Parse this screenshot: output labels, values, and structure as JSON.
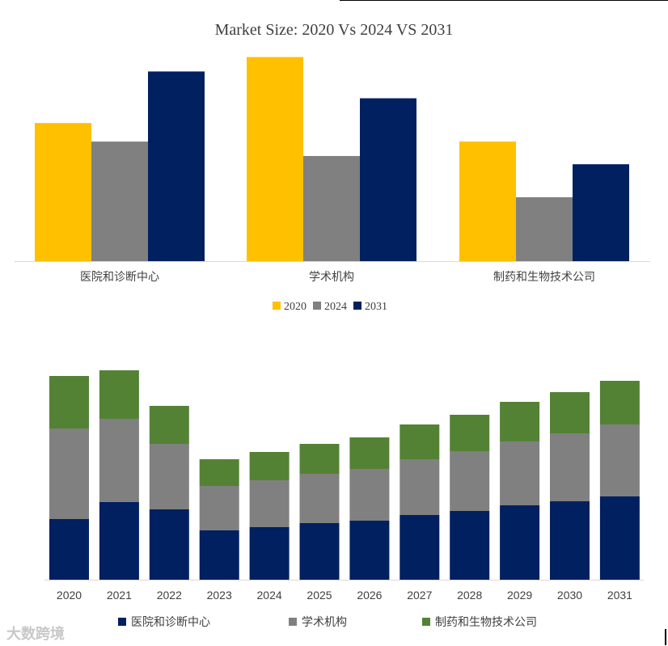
{
  "chart_data": [
    {
      "type": "bar",
      "title": "Market Size: 2020 Vs 2024 VS 2031",
      "categories": [
        "医院和诊断中心",
        "学术机构",
        "制药和生物技术公司"
      ],
      "series": [
        {
          "name": "2020",
          "color": "#FFC000",
          "values": [
            67,
            99,
            58
          ]
        },
        {
          "name": "2024",
          "color": "#808080",
          "values": [
            58,
            51,
            31
          ]
        },
        {
          "name": "2031",
          "color": "#002060",
          "values": [
            92,
            79,
            47
          ]
        }
      ],
      "ylim": [
        0,
        100
      ],
      "grid": false,
      "legend": "bottom"
    },
    {
      "type": "bar",
      "stacked": true,
      "categories": [
        "2020",
        "2021",
        "2022",
        "2023",
        "2024",
        "2025",
        "2026",
        "2027",
        "2028",
        "2029",
        "2030",
        "2031"
      ],
      "series": [
        {
          "name": "医院和诊断中心",
          "color": "#002060",
          "values": [
            75,
            96,
            87,
            61,
            65,
            70,
            73,
            80,
            85,
            92,
            97,
            103
          ]
        },
        {
          "name": "学术机构",
          "color": "#808080",
          "values": [
            112,
            103,
            81,
            55,
            58,
            61,
            64,
            69,
            74,
            79,
            84,
            89
          ]
        },
        {
          "name": "制药和生物技术公司",
          "color": "#548235",
          "values": [
            65,
            60,
            47,
            33,
            35,
            37,
            39,
            43,
            45,
            49,
            51,
            54
          ]
        }
      ],
      "ylim": [
        0,
        260
      ],
      "grid": false,
      "legend": "bottom"
    }
  ],
  "watermark": "大数跨境"
}
